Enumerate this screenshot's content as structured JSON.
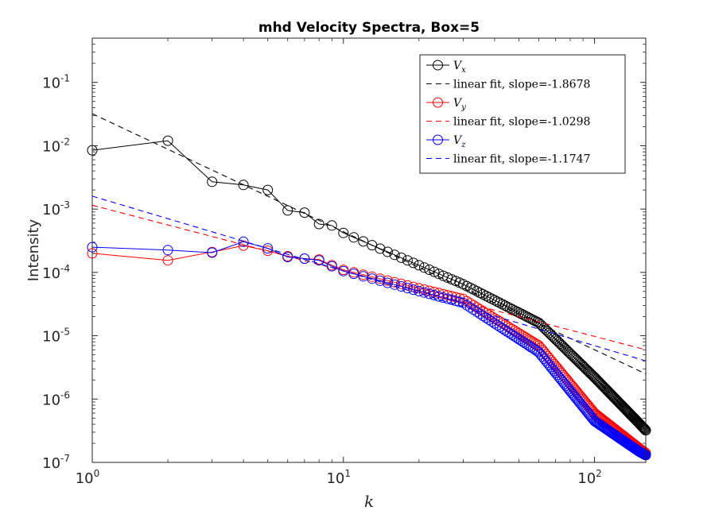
{
  "chart_data": {
    "type": "line",
    "title": "mhd Velocity Spectra, Box=5",
    "xlabel": "k",
    "ylabel": "Intensity",
    "xscale": "log",
    "yscale": "log",
    "xlim": [
      1,
      160
    ],
    "ylim": [
      1e-07,
      0.5
    ],
    "xticks": [
      {
        "base": "10",
        "exp": "0",
        "value": 1
      },
      {
        "base": "10",
        "exp": "1",
        "value": 10
      },
      {
        "base": "10",
        "exp": "2",
        "value": 100
      }
    ],
    "yticks": [
      {
        "base": "10",
        "exp": "-7",
        "value": 1e-07
      },
      {
        "base": "10",
        "exp": "-6",
        "value": 1e-06
      },
      {
        "base": "10",
        "exp": "-5",
        "value": 1e-05
      },
      {
        "base": "10",
        "exp": "-4",
        "value": 0.0001
      },
      {
        "base": "10",
        "exp": "-3",
        "value": 0.001
      },
      {
        "base": "10",
        "exp": "-2",
        "value": 0.01
      },
      {
        "base": "10",
        "exp": "-1",
        "value": 0.1
      }
    ],
    "grid": false,
    "legend_position": "top-right",
    "series": [
      {
        "name": "V",
        "subscript": "x",
        "color": "#000000",
        "marker": "circle",
        "line": "solid",
        "points": [
          [
            1,
            0.0085
          ],
          [
            2,
            0.012
          ],
          [
            3,
            0.0027
          ],
          [
            4,
            0.0024
          ],
          [
            5,
            0.002
          ],
          [
            6,
            0.00095
          ],
          [
            7,
            0.00088
          ],
          [
            8,
            0.00058
          ],
          [
            9,
            0.00055
          ],
          [
            10,
            0.00042
          ],
          [
            30,
            6.5e-05
          ],
          [
            60,
            1.6e-05
          ],
          [
            100,
            2.2e-06
          ],
          [
            150,
            4.2e-07
          ],
          [
            160,
            3.2e-07
          ]
        ]
      },
      {
        "name": "linear fit, slope=-1.8678",
        "color": "#000000",
        "line": "dashed",
        "points": [
          [
            1,
            0.032
          ],
          [
            160,
            2.5e-06
          ]
        ]
      },
      {
        "name": "V",
        "subscript": "y",
        "color": "#ff0000",
        "marker": "circle",
        "line": "solid",
        "points": [
          [
            1,
            0.0002
          ],
          [
            2,
            0.000155
          ],
          [
            3,
            0.00021
          ],
          [
            4,
            0.000265
          ],
          [
            5,
            0.00022
          ],
          [
            6,
            0.00018
          ],
          [
            7,
            0.000165
          ],
          [
            8,
            0.00016
          ],
          [
            9,
            0.00013
          ],
          [
            10,
            0.00011
          ],
          [
            30,
            3.8e-05
          ],
          [
            60,
            7e-06
          ],
          [
            100,
            6e-07
          ],
          [
            150,
            1.7e-07
          ],
          [
            160,
            1.4e-07
          ]
        ]
      },
      {
        "name": "linear fit, slope=-1.0298",
        "color": "#ff0000",
        "line": "dashed",
        "points": [
          [
            1,
            0.00115
          ],
          [
            160,
            6e-06
          ]
        ]
      },
      {
        "name": "V",
        "subscript": "z",
        "color": "#0000ff",
        "marker": "circle",
        "line": "solid",
        "points": [
          [
            1,
            0.00025
          ],
          [
            2,
            0.000225
          ],
          [
            3,
            0.000205
          ],
          [
            4,
            0.000305
          ],
          [
            5,
            0.00024
          ],
          [
            6,
            0.000175
          ],
          [
            7,
            0.000165
          ],
          [
            8,
            0.000155
          ],
          [
            9,
            0.000125
          ],
          [
            10,
            0.000105
          ],
          [
            30,
            3.3e-05
          ],
          [
            60,
            5.5e-06
          ],
          [
            100,
            4.5e-07
          ],
          [
            150,
            1.5e-07
          ],
          [
            160,
            1.3e-07
          ]
        ]
      },
      {
        "name": "linear fit, slope=-1.1747",
        "color": "#0000ff",
        "line": "dashed",
        "points": [
          [
            1,
            0.0016
          ],
          [
            160,
            4e-06
          ]
        ]
      }
    ]
  }
}
